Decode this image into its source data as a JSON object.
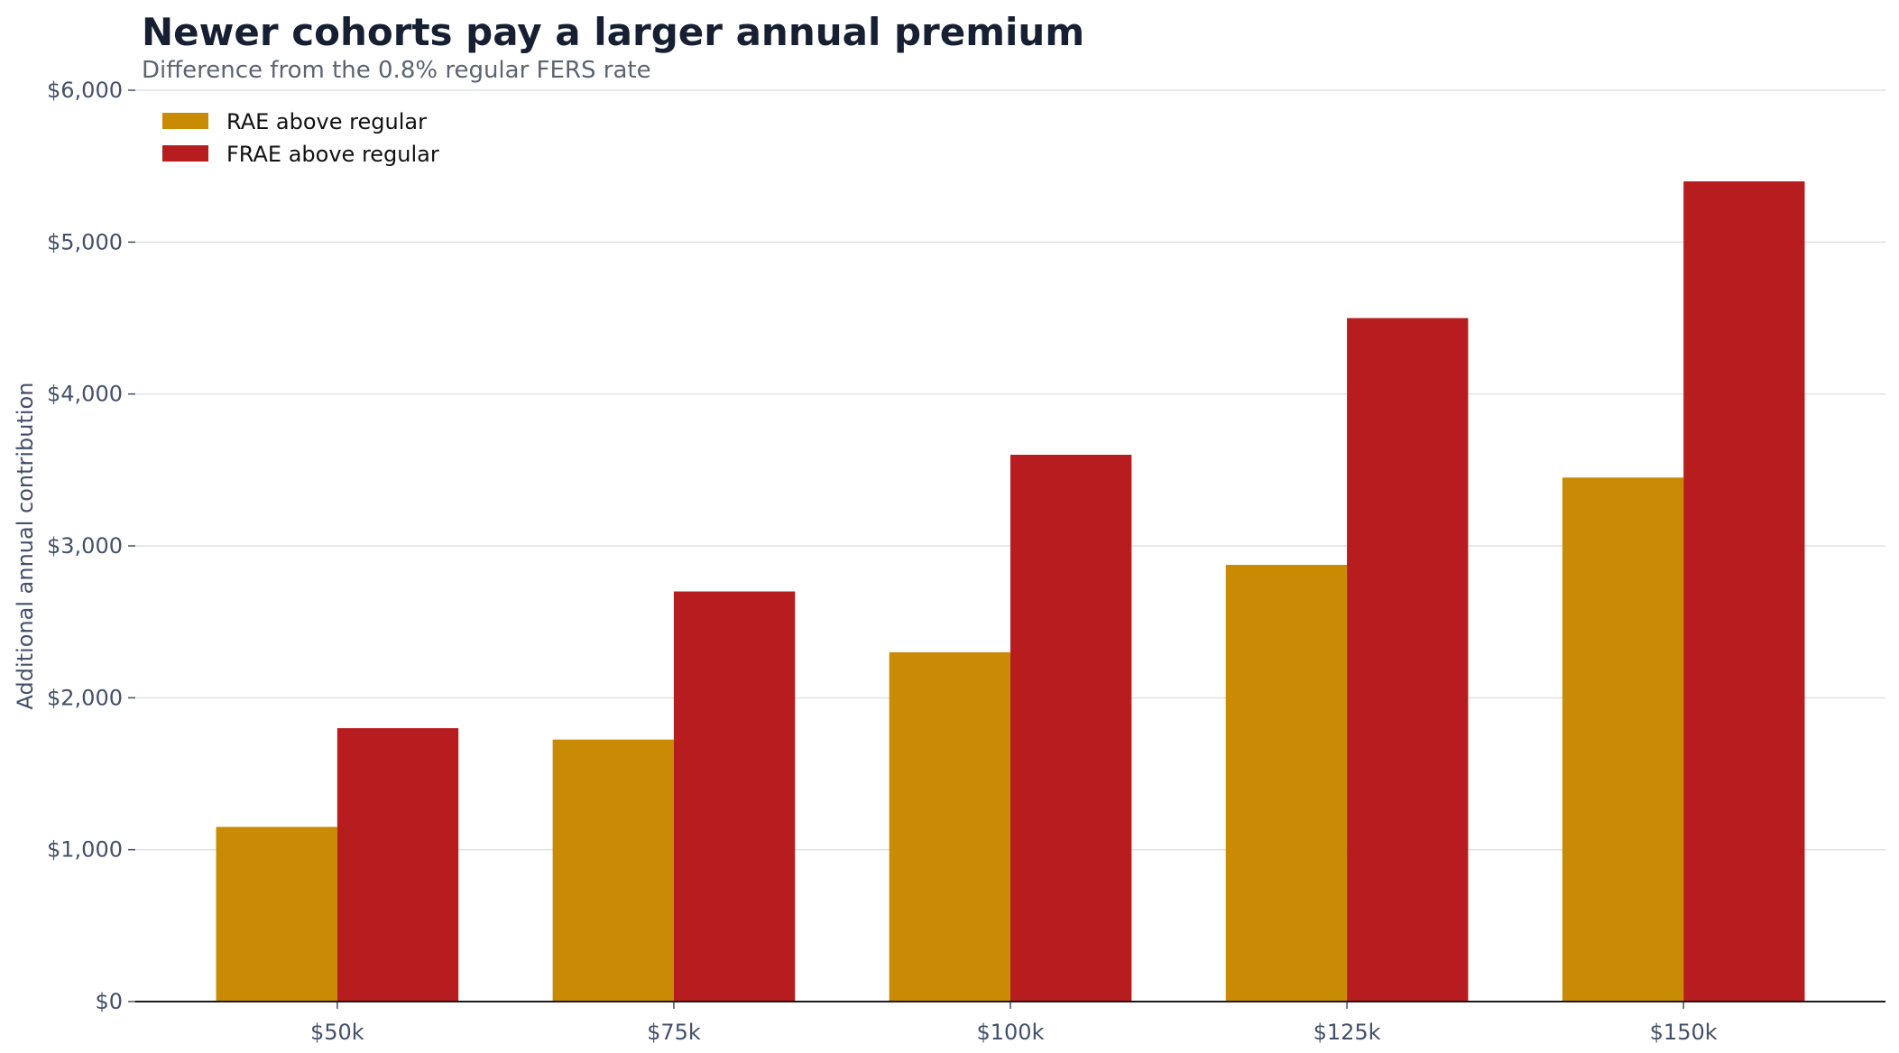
{
  "chart_data": {
    "type": "bar",
    "title": "Newer cohorts pay a larger annual premium",
    "subtitle": "Difference from the 0.8% regular FERS rate",
    "ylabel": "Additional annual contribution",
    "xlabel": "",
    "categories": [
      "$50k",
      "$75k",
      "$100k",
      "$125k",
      "$150k"
    ],
    "series": [
      {
        "name": "RAE above regular",
        "color": "#c98a04",
        "values": [
          1150,
          1725,
          2300,
          2875,
          3450
        ]
      },
      {
        "name": "FRAE above regular",
        "color": "#b71c1e",
        "values": [
          1800,
          2700,
          3600,
          4500,
          5400
        ]
      }
    ],
    "ylim": [
      0,
      6000
    ],
    "yticks": [
      0,
      1000,
      2000,
      3000,
      4000,
      5000,
      6000
    ],
    "ytick_labels": [
      "$0",
      "$1,000",
      "$2,000",
      "$3,000",
      "$4,000",
      "$5,000",
      "$6,000"
    ],
    "grid": "horizontal",
    "legend_position": "top-left"
  }
}
